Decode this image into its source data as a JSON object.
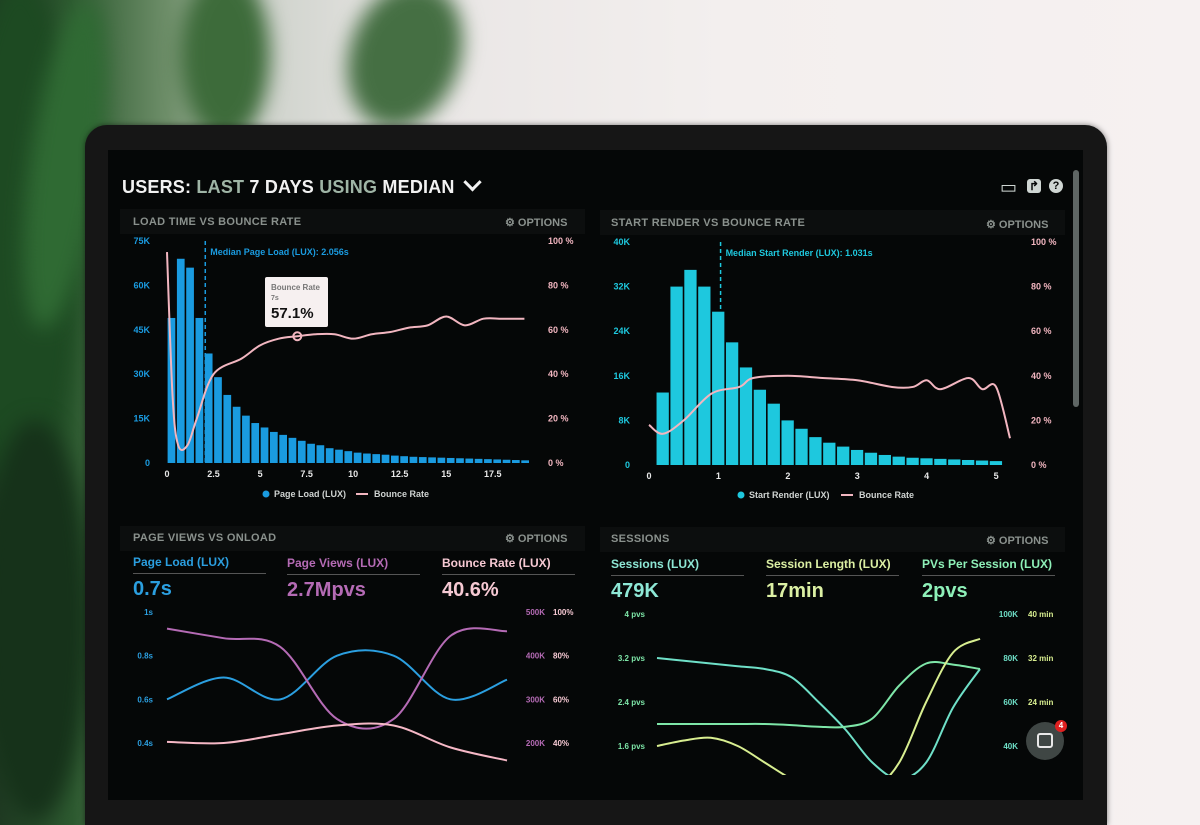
{
  "header": {
    "prefix": "USERS:",
    "range_a": "LAST",
    "range_b": "7 DAYS",
    "using": "USING",
    "stat": "MEDIAN",
    "chevron": "chevron-down-icon"
  },
  "toolbar_icons": [
    "monitor-icon",
    "share-icon",
    "help-icon"
  ],
  "toolbar_glyphs": {
    "monitor": "▭",
    "share": "↱",
    "help": "?"
  },
  "options_label": "⚙ OPTIONS",
  "panels": [
    {
      "title": "LOAD TIME VS BOUNCE RATE"
    },
    {
      "title": "START RENDER VS BOUNCE RATE"
    },
    {
      "title": "PAGE VIEWS VS ONLOAD",
      "metrics": [
        {
          "label": "Page Load (LUX)",
          "value": "0.7s",
          "color": "#2b9fe0"
        },
        {
          "label": "Page Views (LUX)",
          "value": "2.7Mpvs",
          "color": "#b56bb5"
        },
        {
          "label": "Bounce Rate (LUX)",
          "value": "40.6%",
          "color": "#f6c9d3"
        }
      ]
    },
    {
      "title": "SESSIONS",
      "metrics": [
        {
          "label": "Sessions (LUX)",
          "value": "479K",
          "color": "#8ee8d6"
        },
        {
          "label": "Session Length (LUX)",
          "value": "17min",
          "color": "#dcf0a4"
        },
        {
          "label": "PVs Per Session (LUX)",
          "value": "2pvs",
          "color": "#8ef0b8"
        }
      ]
    }
  ],
  "chat": {
    "icon": "chat-icon",
    "badge": "4"
  },
  "chart_data": [
    {
      "type": "bar+line",
      "xticks": [
        "0",
        "2.5",
        "5",
        "7.5",
        "10",
        "12.5",
        "15",
        "17.5"
      ],
      "xtick_values": [
        0,
        2.5,
        5,
        7.5,
        10,
        12.5,
        15,
        17.5
      ],
      "yticks_left": [
        "0",
        "15K",
        "30K",
        "45K",
        "60K",
        "75K"
      ],
      "yticks_right": [
        "0 %",
        "20 %",
        "40 %",
        "60 %",
        "80 %",
        "100 %"
      ],
      "ylim_left": [
        0,
        75000
      ],
      "ylim_right": [
        0,
        100
      ],
      "xlim": [
        0,
        19.5
      ],
      "bar_width": 0.5,
      "bars": {
        "name": "Page Load (LUX)",
        "color": "#1a9be0",
        "values": [
          49000,
          69000,
          66000,
          49000,
          37000,
          29000,
          23000,
          19000,
          16000,
          13500,
          12000,
          10500,
          9500,
          8500,
          7500,
          6500,
          6000,
          5000,
          4500,
          4000,
          3500,
          3200,
          3000,
          2800,
          2500,
          2300,
          2100,
          2000,
          1900,
          1800,
          1700,
          1600,
          1500,
          1400,
          1300,
          1200,
          1100,
          1000,
          900
        ]
      },
      "line": {
        "name": "Bounce Rate",
        "color": "#f2b6c0",
        "x": [
          0,
          0.3,
          0.6,
          1.1,
          1.6,
          2.5,
          4,
          5,
          6,
          7,
          8,
          9,
          10,
          11,
          12,
          13,
          14,
          15,
          16,
          17,
          18,
          19.2
        ],
        "y": [
          95,
          30,
          8,
          8,
          20,
          40,
          47,
          53,
          56,
          57.1,
          58,
          58,
          56,
          58,
          59,
          61,
          62,
          66,
          62,
          65,
          65,
          65
        ]
      },
      "median": {
        "x": 2.056,
        "label": "Median Page Load (LUX): 2.056s"
      },
      "tooltip": {
        "title": "Bounce Rate",
        "x_label": "7s",
        "value": "57.1%"
      },
      "legend": [
        "Page Load (LUX)",
        "Bounce Rate"
      ]
    },
    {
      "type": "bar+line",
      "xticks": [
        "0",
        "1",
        "2",
        "3",
        "4",
        "5"
      ],
      "xtick_values": [
        0,
        1,
        2,
        3,
        4,
        5
      ],
      "yticks_left": [
        "0",
        "8K",
        "16K",
        "24K",
        "32K",
        "40K"
      ],
      "yticks_right": [
        "0 %",
        "20 %",
        "40 %",
        "60 %",
        "80 %",
        "100 %"
      ],
      "ylim_left": [
        0,
        40000
      ],
      "ylim_right": [
        0,
        100
      ],
      "xlim": [
        0,
        5.2
      ],
      "bar_width": 0.2,
      "bar_start": 0.1,
      "bars": {
        "name": "Start Render (LUX)",
        "color": "#1ec8de",
        "values": [
          13000,
          32000,
          35000,
          32000,
          27500,
          22000,
          17500,
          13500,
          11000,
          8000,
          6500,
          5000,
          4000,
          3300,
          2700,
          2200,
          1800,
          1500,
          1300,
          1200,
          1100,
          1000,
          900,
          800,
          700
        ]
      },
      "line": {
        "name": "Bounce Rate",
        "color": "#f2b6c0",
        "x": [
          0,
          0.2,
          0.5,
          0.9,
          1.3,
          1.5,
          2,
          2.5,
          3,
          3.5,
          3.8,
          4,
          4.2,
          4.6,
          4.8,
          5,
          5.2
        ],
        "y": [
          18,
          14,
          20,
          32,
          35,
          39,
          40,
          39,
          38,
          35,
          35,
          38,
          34,
          39,
          34,
          35,
          12
        ]
      },
      "median": {
        "x": 1.031,
        "label": "Median Start Render (LUX): 1.031s"
      },
      "legend": [
        "Start Render (LUX)",
        "Bounce Rate"
      ]
    },
    {
      "type": "line",
      "yticks_left": [
        "0.4s",
        "0.6s",
        "0.8s",
        "1s"
      ],
      "yticks_right_a": [
        "200K",
        "300K",
        "400K",
        "500K"
      ],
      "yticks_right_b": [
        "40%",
        "60%",
        "80%",
        "100%"
      ],
      "ylim_left": [
        0.4,
        1.0
      ],
      "ylim_right_a": [
        200000,
        500000
      ],
      "ylim_right_b": [
        40,
        100
      ],
      "series": [
        {
          "name": "Page Load (LUX)",
          "axis": "left",
          "color": "#2b9fe0",
          "values": [
            0.6,
            0.7,
            0.6,
            0.8,
            0.8,
            0.6,
            0.69
          ]
        },
        {
          "name": "Page Views (LUX)",
          "axis": "right_a",
          "color": "#b56bb5",
          "values": [
            462000,
            440000,
            420000,
            255000,
            255000,
            445000,
            456000
          ]
        },
        {
          "name": "Bounce Rate (LUX)",
          "axis": "right_b",
          "color": "#f6b8c6",
          "values": [
            40.5,
            40,
            44,
            48,
            48,
            38,
            32
          ]
        }
      ]
    },
    {
      "type": "line",
      "yticks_left": [
        "1.6 pvs",
        "2.4 pvs",
        "3.2 pvs",
        "4 pvs"
      ],
      "yticks_right_a": [
        "40K",
        "60K",
        "80K",
        "100K"
      ],
      "yticks_right_b": [
        "24 min",
        "32 min",
        "40 min"
      ],
      "ylim_left": [
        1.6,
        4.0
      ],
      "ylim_right_a": [
        40000,
        100000
      ],
      "ylim_right_b": [
        16,
        40
      ],
      "series": [
        {
          "name": "Sessions (LUX)",
          "axis": "right_a",
          "color": "#6fe0c8",
          "values": [
            80000,
            78750,
            77500,
            76250,
            75000,
            71250,
            60000,
            47500,
            32500,
            25000,
            32500,
            57500,
            75000
          ]
        },
        {
          "name": "PVs Per Session (LUX)",
          "axis": "left",
          "color": "#7ee6a8",
          "values": [
            2.0,
            2.0,
            2.0,
            2.0,
            2.0,
            1.98,
            1.95,
            1.95,
            2.1,
            2.7,
            3.1,
            3.08,
            3.0
          ]
        },
        {
          "name": "Session Length (LUX)",
          "axis": "right_b",
          "color": "#d8ee90",
          "values": [
            16,
            17,
            17.5,
            16,
            13,
            10,
            8,
            7,
            8,
            13,
            24,
            33,
            35.5
          ]
        }
      ]
    }
  ]
}
